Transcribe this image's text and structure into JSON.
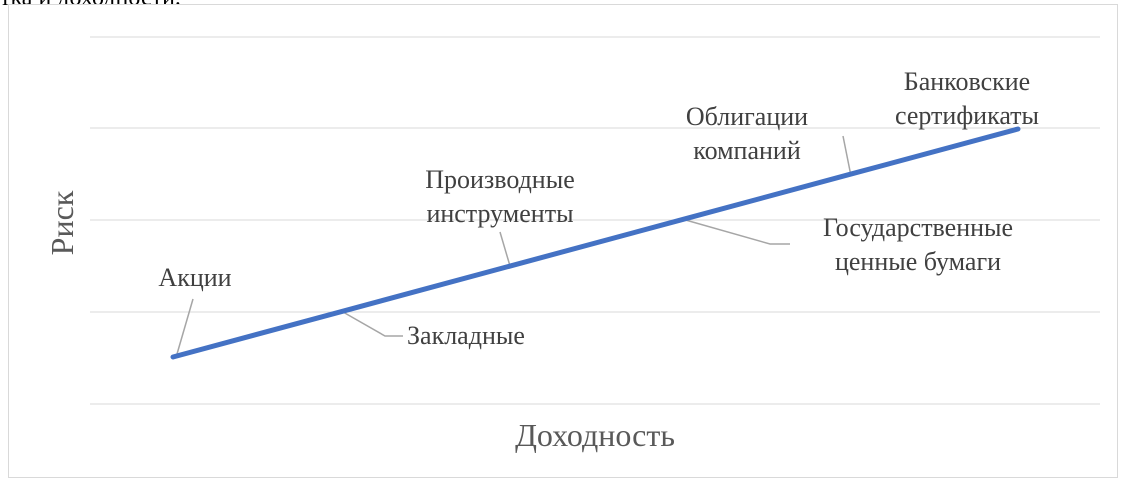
{
  "header": {
    "text": "тка и доходности."
  },
  "chart_data": {
    "type": "line",
    "xlabel": "Доходность",
    "ylabel": "Риск",
    "grid": true,
    "legend": "none",
    "line_color": "#4472C4",
    "x": [
      0,
      1,
      2,
      3,
      4,
      5
    ],
    "series": [
      {
        "values": [
          1,
          2,
          3,
          4,
          5,
          6
        ]
      }
    ],
    "data_labels": [
      {
        "index": 0,
        "lines": [
          "Акции"
        ]
      },
      {
        "index": 1,
        "lines": [
          "Закладные"
        ]
      },
      {
        "index": 2,
        "lines": [
          "Производные",
          "инструменты"
        ]
      },
      {
        "index": 3,
        "lines": [
          "Государственные",
          "ценные бумаги"
        ]
      },
      {
        "index": 4,
        "lines": [
          "Облигации",
          "компаний"
        ]
      },
      {
        "index": 5,
        "lines": [
          "Банковские",
          "сертификаты"
        ]
      }
    ]
  }
}
